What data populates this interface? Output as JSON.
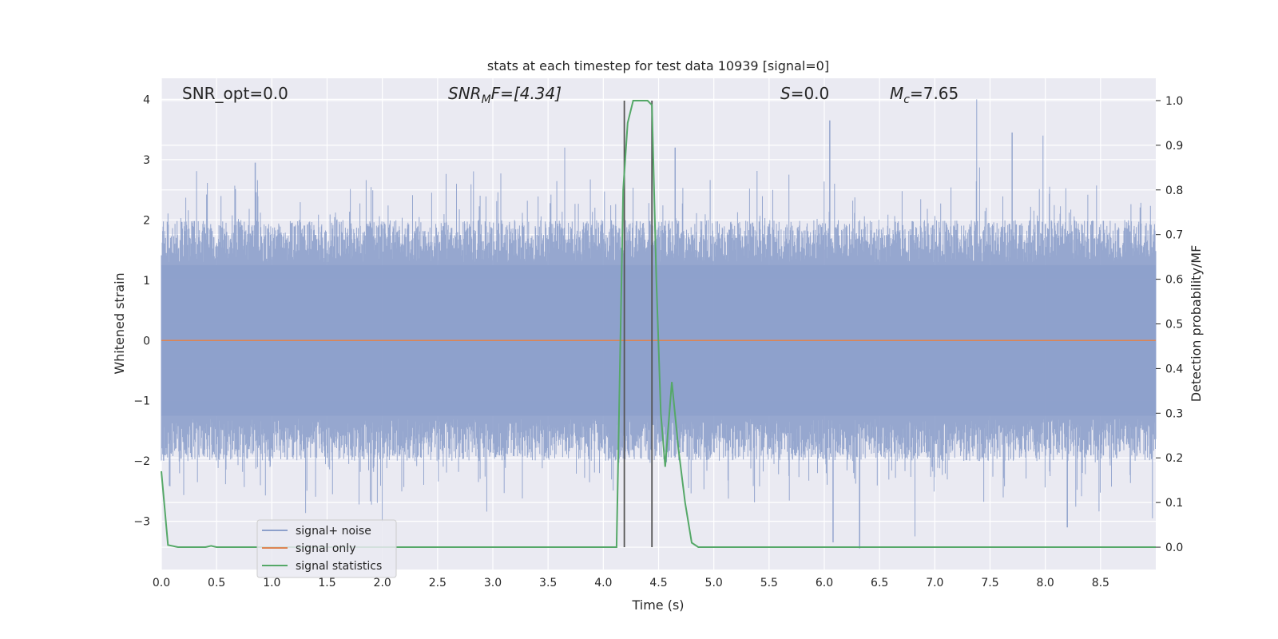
{
  "chart_data": {
    "type": "line",
    "title": "stats at each timestep for test data 10939 [signal=0]",
    "xlabel": "Time (s)",
    "ylabel": "Whitened strain",
    "ylabel_right": "Detection probability/MF",
    "xlim": [
      0.0,
      9.0
    ],
    "ylim": [
      -3.8,
      4.35
    ],
    "ylim_right": [
      -0.05,
      1.05
    ],
    "x_ticks": [
      "0.0",
      "0.5",
      "1.0",
      "1.5",
      "2.0",
      "2.5",
      "3.0",
      "3.5",
      "4.0",
      "4.5",
      "5.0",
      "5.5",
      "6.0",
      "6.5",
      "7.0",
      "7.5",
      "8.0",
      "8.5"
    ],
    "y_ticks": [
      "−3",
      "−2",
      "−1",
      "0",
      "1",
      "2",
      "3",
      "4"
    ],
    "y_ticks_right": [
      "0.0",
      "0.1",
      "0.2",
      "0.3",
      "0.4",
      "0.5",
      "0.6",
      "0.7",
      "0.8",
      "0.9",
      "1.0"
    ],
    "grid": true,
    "legend_position": "lower-left",
    "annotations": {
      "snr_opt": "SNR_opt=0.0",
      "snr_mf_main": "SNR",
      "snr_mf_sub": "M",
      "snr_mf_rest": "F=[4.34]",
      "s_main": "S",
      "s_rest": "=0.0",
      "mc_main": "M",
      "mc_sub": "c",
      "mc_rest": "=7.65"
    },
    "vertical_markers": [
      4.19,
      4.44
    ],
    "series": [
      {
        "name": "signal+ noise",
        "color": "#8da0cb",
        "axis": "left",
        "description_kind": "dense noise",
        "envelope_peaks": [
          [
            0.85,
            2.95
          ],
          [
            3.65,
            3.2
          ],
          [
            4.65,
            3.2
          ],
          [
            6.05,
            3.65
          ],
          [
            7.38,
            4.0
          ],
          [
            7.7,
            3.45
          ],
          [
            7.98,
            3.4
          ],
          [
            2.0,
            -3.0
          ],
          [
            6.08,
            -3.35
          ],
          [
            6.32,
            -3.45
          ],
          [
            6.82,
            -3.25
          ],
          [
            8.2,
            -3.1
          ],
          [
            8.97,
            -2.95
          ]
        ]
      },
      {
        "name": "signal only",
        "color": "#dd8452",
        "axis": "left",
        "x": [
          0.0,
          9.0
        ],
        "y": [
          0.0,
          0.0
        ]
      },
      {
        "name": "signal statistics",
        "color": "#55a868",
        "axis": "right",
        "x": [
          0.0,
          0.06,
          0.15,
          0.4,
          0.45,
          0.5,
          1.0,
          2.0,
          3.0,
          4.0,
          4.12,
          4.18,
          4.22,
          4.27,
          4.4,
          4.44,
          4.48,
          4.52,
          4.56,
          4.62,
          4.68,
          4.74,
          4.8,
          4.86,
          5.0,
          6.0,
          7.0,
          8.0,
          9.0
        ],
        "y": [
          0.17,
          0.005,
          0.0,
          0.0,
          0.003,
          0.0,
          0.0,
          0.0,
          0.0,
          0.0,
          0.0,
          0.8,
          0.95,
          1.0,
          1.0,
          0.99,
          0.6,
          0.3,
          0.18,
          0.37,
          0.22,
          0.1,
          0.01,
          0.0,
          0.0,
          0.0,
          0.0,
          0.0,
          0.0
        ]
      }
    ]
  }
}
